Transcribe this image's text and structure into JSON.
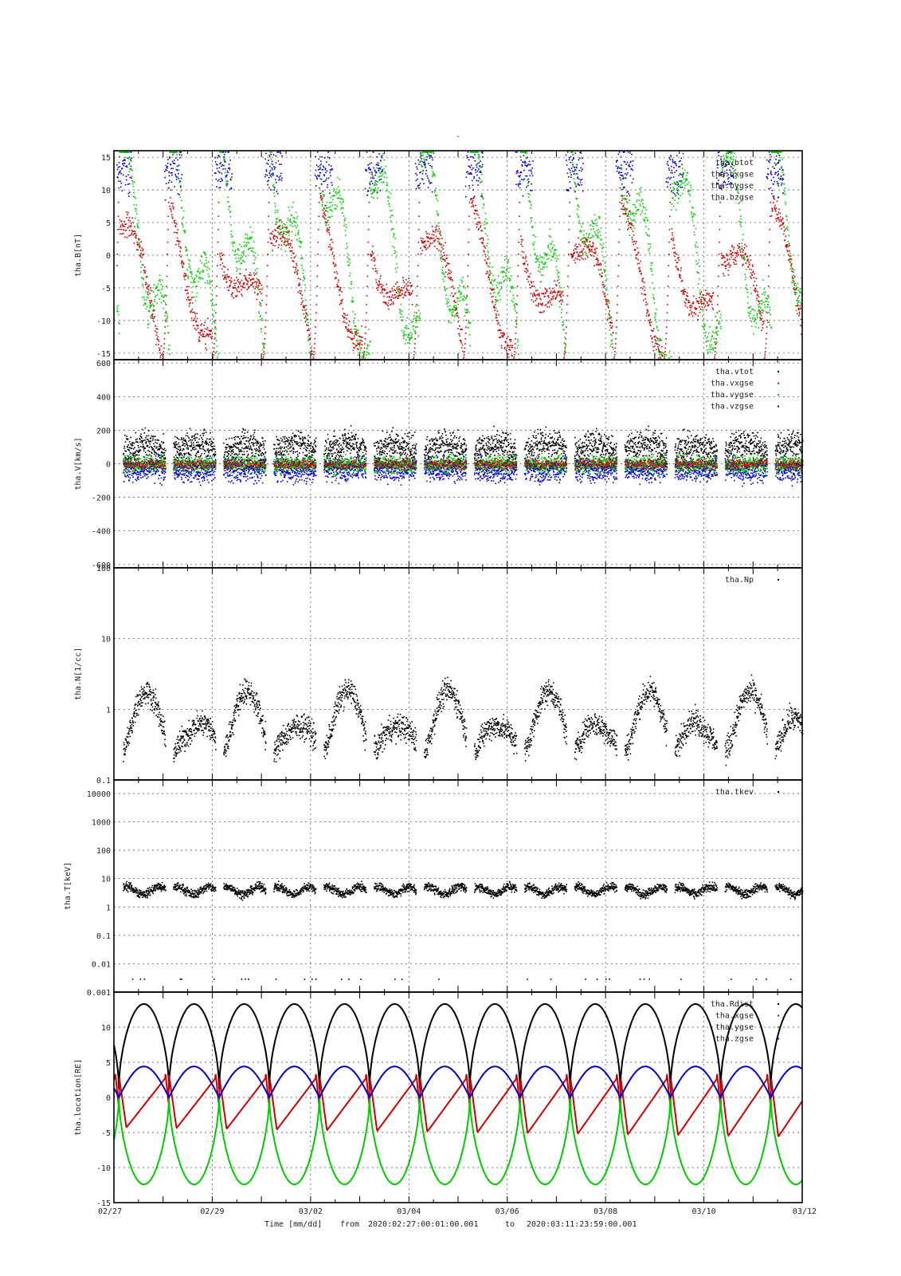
{
  "figure": {
    "title": "-",
    "footer": {
      "time_label": "Time [mm/dd]",
      "from_label": "from",
      "from_value": "2020:02:27:00:01:00.001",
      "to_label": "to",
      "to_value": "2020:03:11:23:59:00.001"
    },
    "x_tick_labels": [
      "02/27",
      "02/29",
      "03/02",
      "03/04",
      "03/06",
      "03/08",
      "03/10",
      "03/12"
    ],
    "x_range_days": [
      0,
      14
    ]
  },
  "colors": {
    "black": "#000000",
    "red": "#cc0000",
    "green": "#00cc00",
    "blue": "#0000cc"
  },
  "chart_data": [
    {
      "type": "scatter",
      "panel": "B",
      "ylabel": "tha.B[nT]",
      "ylim": [
        -16,
        16
      ],
      "yticks": [
        15,
        10,
        5,
        0,
        -5,
        -10,
        -15
      ],
      "ytick_labels": [
        "15",
        "10",
        "5",
        "0",
        "-5",
        "-10",
        "-15"
      ],
      "yscale": "linear",
      "grid": true,
      "legend_placement": "top-right",
      "series": [
        {
          "name": "tha.btot",
          "color": "black"
        },
        {
          "name": "tha.bxgse",
          "color": "red"
        },
        {
          "name": "tha.bygse",
          "color": "green"
        },
        {
          "name": "tha.bzgse",
          "color": "blue"
        }
      ]
    },
    {
      "type": "scatter",
      "panel": "V",
      "ylabel": "tha.V[km/s]",
      "ylim": [
        -620,
        620
      ],
      "yticks": [
        600,
        400,
        200,
        0,
        -200,
        -400,
        -600
      ],
      "ytick_labels": [
        "600",
        "400",
        "200",
        "0",
        "-200",
        "-400",
        "-600"
      ],
      "yscale": "linear",
      "grid": true,
      "legend_placement": "top-right",
      "series": [
        {
          "name": "tha.vtot",
          "color": "black"
        },
        {
          "name": "tha.vxgse",
          "color": "red"
        },
        {
          "name": "tha.vygse",
          "color": "green"
        },
        {
          "name": "tha.vzgse",
          "color": "blue"
        }
      ]
    },
    {
      "type": "scatter",
      "panel": "N",
      "ylabel": "tha.N[1/cc]",
      "ylim": [
        0.1,
        100
      ],
      "yticks": [
        100,
        10,
        1,
        0.1
      ],
      "ytick_labels": [
        "100",
        "10",
        "1",
        "0.1"
      ],
      "yscale": "log",
      "grid": true,
      "legend_placement": "top-right",
      "series": [
        {
          "name": "tha.Np",
          "color": "black"
        }
      ]
    },
    {
      "type": "scatter",
      "panel": "T",
      "ylabel": "tha.T[keV]",
      "ylim": [
        0.001,
        30000
      ],
      "yticks": [
        10000,
        1000,
        100,
        10,
        1,
        0.1,
        0.01,
        0.001
      ],
      "ytick_labels": [
        "10000",
        "1000",
        "100",
        "10",
        "1",
        "0.1",
        "0.01",
        "0.001"
      ],
      "yscale": "log",
      "grid": true,
      "legend_placement": "top-right",
      "series": [
        {
          "name": "tha.tkev",
          "color": "black"
        }
      ]
    },
    {
      "type": "line",
      "panel": "location",
      "ylabel": "tha.location[RE]",
      "ylim": [
        -15,
        15
      ],
      "yticks": [
        10,
        5,
        0,
        -5,
        -10,
        -15
      ],
      "ytick_labels": [
        "10",
        "5",
        "0",
        "-5",
        "-10",
        "-15"
      ],
      "yscale": "linear",
      "grid": true,
      "legend_placement": "top-right",
      "series": [
        {
          "name": "tha.Rdist",
          "color": "black",
          "max": 13.3
        },
        {
          "name": "tha.xgse",
          "color": "red",
          "min": -5.5,
          "max": 3.4
        },
        {
          "name": "tha.ygse",
          "color": "green",
          "min": -12.4
        },
        {
          "name": "tha.zgse",
          "color": "blue",
          "max": 4.4
        }
      ],
      "orbit_period_days": 1.02,
      "first_perigee_day": 0.1
    }
  ]
}
